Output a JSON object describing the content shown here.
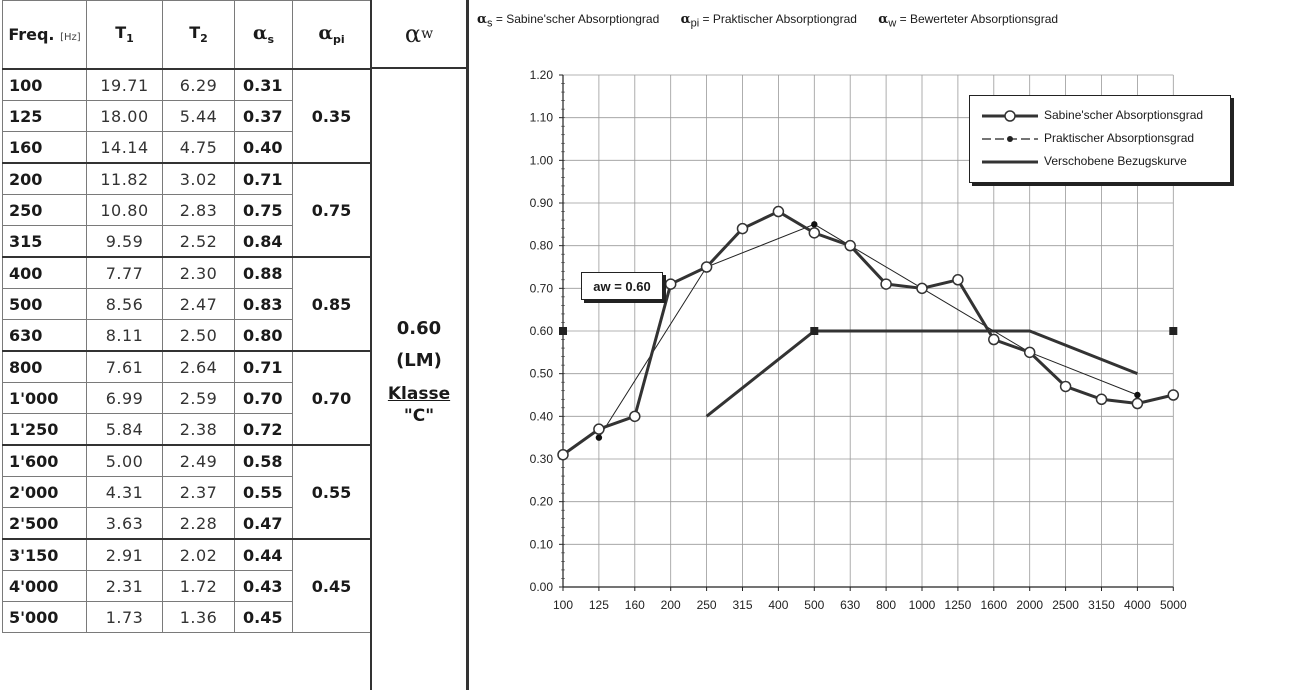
{
  "table": {
    "headers": {
      "freq": "Freq.",
      "freq_unit": "[Hz]",
      "t1": "T",
      "t1_sub": "1",
      "t2": "T",
      "t2_sub": "2",
      "as": "α",
      "as_sub": "s",
      "api": "α",
      "api_sub": "pi"
    },
    "rows": [
      {
        "freq": "100",
        "t1": "19.71",
        "t2": "6.29",
        "as": "0.31"
      },
      {
        "freq": "125",
        "t1": "18.00",
        "t2": "5.44",
        "as": "0.37"
      },
      {
        "freq": "160",
        "t1": "14.14",
        "t2": "4.75",
        "as": "0.40"
      },
      {
        "freq": "200",
        "t1": "11.82",
        "t2": "3.02",
        "as": "0.71"
      },
      {
        "freq": "250",
        "t1": "10.80",
        "t2": "2.83",
        "as": "0.75"
      },
      {
        "freq": "315",
        "t1": "9.59",
        "t2": "2.52",
        "as": "0.84"
      },
      {
        "freq": "400",
        "t1": "7.77",
        "t2": "2.30",
        "as": "0.88"
      },
      {
        "freq": "500",
        "t1": "8.56",
        "t2": "2.47",
        "as": "0.83"
      },
      {
        "freq": "630",
        "t1": "8.11",
        "t2": "2.50",
        "as": "0.80"
      },
      {
        "freq": "800",
        "t1": "7.61",
        "t2": "2.64",
        "as": "0.71"
      },
      {
        "freq": "1'000",
        "t1": "6.99",
        "t2": "2.59",
        "as": "0.70"
      },
      {
        "freq": "1'250",
        "t1": "5.84",
        "t2": "2.38",
        "as": "0.72"
      },
      {
        "freq": "1'600",
        "t1": "5.00",
        "t2": "2.49",
        "as": "0.58"
      },
      {
        "freq": "2'000",
        "t1": "4.31",
        "t2": "2.37",
        "as": "0.55"
      },
      {
        "freq": "2'500",
        "t1": "3.63",
        "t2": "2.28",
        "as": "0.47"
      },
      {
        "freq": "3'150",
        "t1": "2.91",
        "t2": "2.02",
        "as": "0.44"
      },
      {
        "freq": "4'000",
        "t1": "2.31",
        "t2": "1.72",
        "as": "0.43"
      },
      {
        "freq": "5'000",
        "t1": "1.73",
        "t2": "1.36",
        "as": "0.45"
      }
    ],
    "api_values": [
      "0.35",
      "0.75",
      "0.85",
      "0.70",
      "0.55",
      "0.45"
    ]
  },
  "aw": {
    "header": "α",
    "header_sub": "w",
    "value": "0.60",
    "lm": "(LM)",
    "klasse": "Klasse",
    "class": "\"C\""
  },
  "chart_defs": {
    "s_sym": "α",
    "s_sub": "s",
    "s_text": "= Sabine'scher Absorptiongrad",
    "p_sym": "α",
    "p_sub": "pi",
    "p_text": "= Praktischer Absorptiongrad",
    "w_sym": "α",
    "w_sub": "w",
    "w_text": "= Bewerteter Absorptionsgrad"
  },
  "aw_label": "aw = 0.60",
  "chart_data": {
    "type": "line",
    "categories": [
      "100",
      "125",
      "160",
      "200",
      "250",
      "315",
      "400",
      "500",
      "630",
      "800",
      "1000",
      "1250",
      "1600",
      "2000",
      "2500",
      "3150",
      "4000",
      "5000"
    ],
    "ylim": [
      0.0,
      1.2
    ],
    "yticks": [
      "0.00",
      "0.10",
      "0.20",
      "0.30",
      "0.40",
      "0.50",
      "0.60",
      "0.70",
      "0.80",
      "0.90",
      "1.00",
      "1.10",
      "1.20"
    ],
    "grid": true,
    "legend_position": "top-right",
    "series": [
      {
        "name": "Sabine'scher Absorptionsgrad",
        "color": "#333333",
        "values": [
          0.31,
          0.37,
          0.4,
          0.71,
          0.75,
          0.84,
          0.88,
          0.83,
          0.8,
          0.71,
          0.7,
          0.72,
          0.58,
          0.55,
          0.47,
          0.44,
          0.43,
          0.45
        ]
      },
      {
        "name": "Praktischer Absorptionsgrad",
        "color": "#222222",
        "x": [
          "125",
          "250",
          "500",
          "1000",
          "2000",
          "4000"
        ],
        "values": [
          0.35,
          0.75,
          0.85,
          0.7,
          0.55,
          0.45
        ]
      },
      {
        "name": "Verschobene Bezugskurve",
        "color": "#333333",
        "x": [
          "250",
          "500",
          "1000",
          "2000",
          "4000"
        ],
        "values": [
          0.4,
          0.6,
          0.6,
          0.6,
          0.5
        ]
      }
    ],
    "marker_points": [
      {
        "x": "100",
        "y": 0.6
      },
      {
        "x": "500",
        "y": 0.6
      },
      {
        "x": "5000",
        "y": 0.6
      }
    ]
  }
}
